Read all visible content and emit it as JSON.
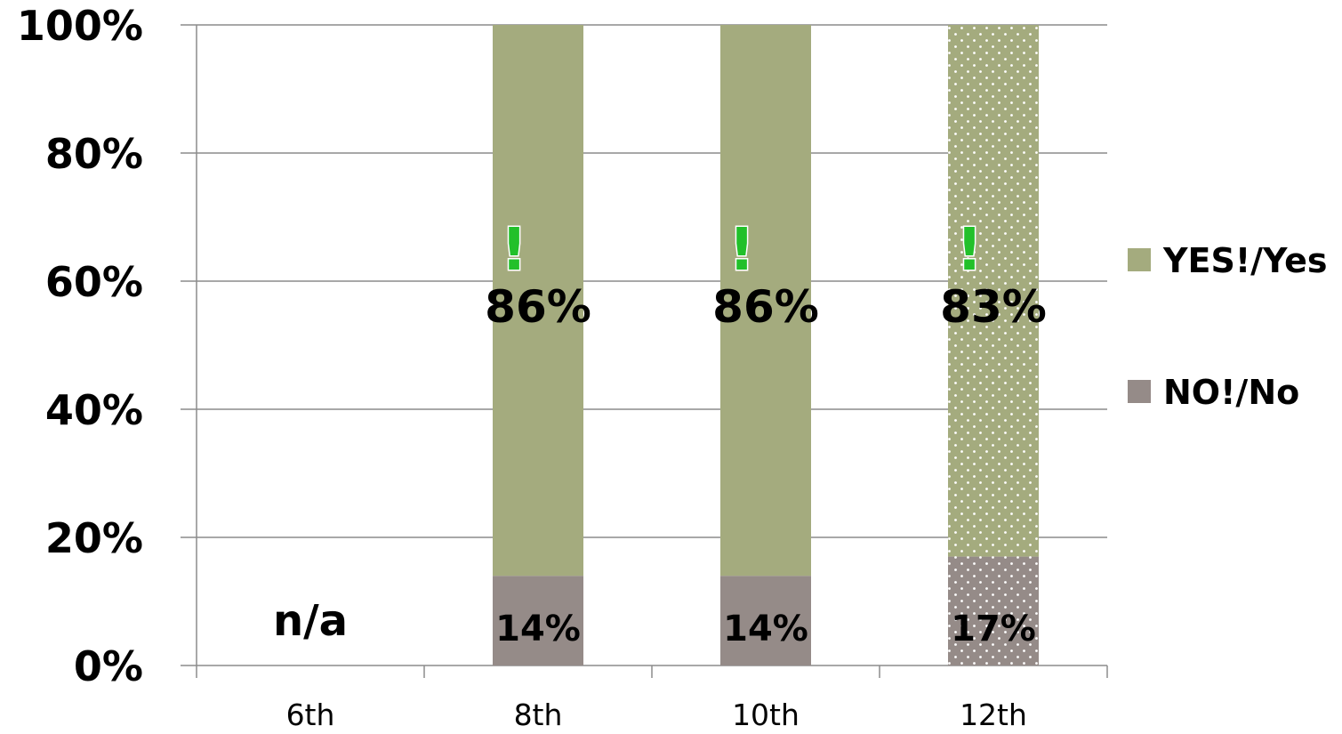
{
  "chart_data": {
    "type": "bar",
    "stacked": true,
    "categories": [
      "6th",
      "8th",
      "10th",
      "12th"
    ],
    "series": [
      {
        "name": "NO!/No",
        "values": [
          null,
          14,
          14,
          17
        ],
        "labels": [
          "",
          "14%",
          "14%",
          "17%"
        ],
        "color": "#958b88"
      },
      {
        "name": "YES!/Yes",
        "values": [
          null,
          86,
          86,
          83
        ],
        "labels": [
          "",
          "86%",
          "86%",
          "83%"
        ],
        "color": "#a4ab7e"
      }
    ],
    "yticks": [
      "0%",
      "20%",
      "40%",
      "60%",
      "80%",
      "100%"
    ],
    "ylim": [
      0,
      100
    ],
    "grid": true,
    "legend": "right",
    "missing_label": {
      "category": "6th",
      "text": "n/a"
    },
    "emphasis_marker": "!",
    "emphasis_color": "#22c02a",
    "dotted_categories": [
      "12th"
    ]
  }
}
